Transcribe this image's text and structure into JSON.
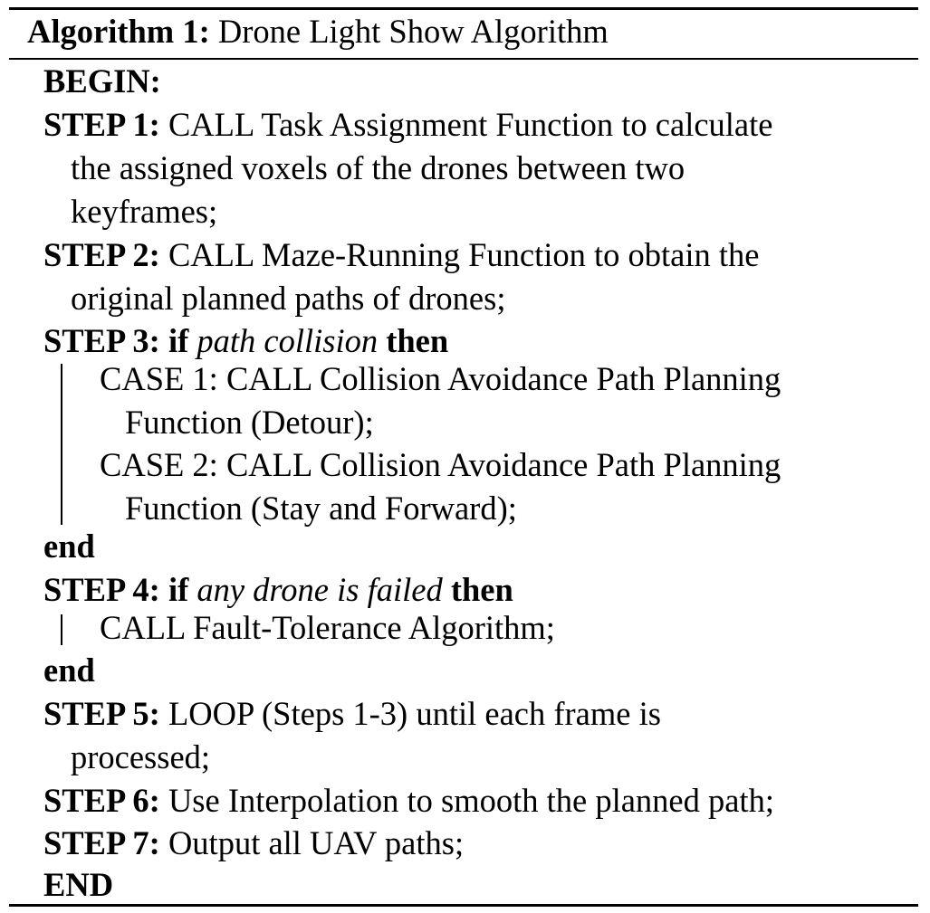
{
  "algorithm": {
    "label": "Algorithm 1:",
    "title": "Drone Light Show Algorithm",
    "begin": "BEGIN:",
    "steps": [
      {
        "label": "STEP 1:",
        "line1": "CALL Task Assignment Function to calculate",
        "line2": "the assigned voxels of the drones between two",
        "line3": "keyframes;"
      },
      {
        "label": "STEP 2:",
        "line1": "CALL Maze-Running Function to obtain the",
        "line2": "original planned paths of drones;"
      },
      {
        "label": "STEP 3:",
        "if_kw": "if",
        "condition": "path collision",
        "then_kw": "then",
        "cases": [
          {
            "line1": "CASE 1: CALL Collision Avoidance Path Planning",
            "line2": "Function (Detour);"
          },
          {
            "line1": "CASE 2: CALL Collision Avoidance Path Planning",
            "line2": "Function (Stay and Forward);"
          }
        ],
        "end_kw": "end"
      },
      {
        "label": "STEP 4:",
        "if_kw": "if",
        "condition": "any drone is failed",
        "then_kw": "then",
        "body": "CALL Fault-Tolerance Algorithm;",
        "end_kw": "end"
      },
      {
        "label": "STEP 5:",
        "line1": "LOOP (Steps 1-3) until each frame is",
        "line2": "processed;"
      },
      {
        "label": "STEP 6:",
        "line1": "Use Interpolation to smooth the planned path;"
      },
      {
        "label": "STEP 7:",
        "line1": "Output all UAV paths;"
      }
    ],
    "end": "END"
  }
}
